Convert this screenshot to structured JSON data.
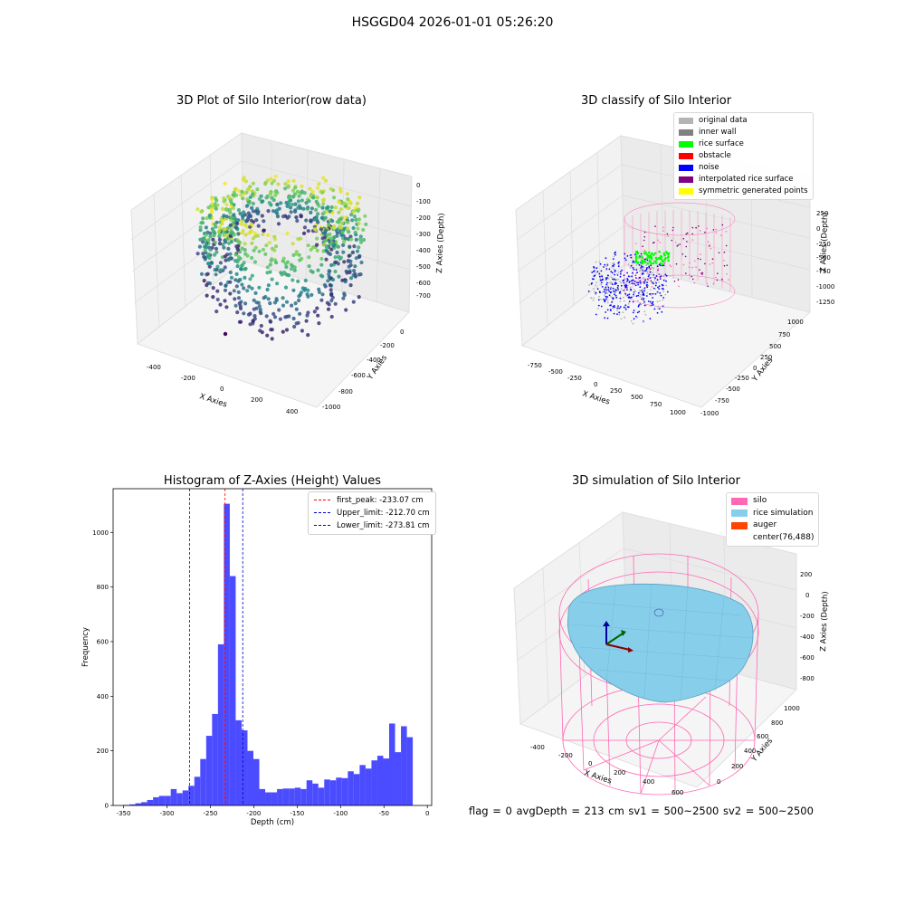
{
  "suptitle": "HSGGD04 2026-01-01 05:26:20",
  "footer": "flag = 0     avgDepth = 213 cm  sv1 = 500~2500  sv2 = 500~2500",
  "colors": {
    "original": "#b4b4b4",
    "inner_wall": "#808080",
    "rice_surface": "#00ff00",
    "obstacle": "#ff0000",
    "noise": "#0000ff",
    "interpolated": "#800080",
    "symmetric": "#ffff00",
    "silo": "#ff69b4",
    "rice_sim": "#87ceeb",
    "auger": "#ff4500",
    "hist_bar": "#4b4bff",
    "peak_line": "#ff0000",
    "limit_line": "#0000cc"
  },
  "chart_data": [
    {
      "type": "scatter",
      "title": "3D Plot of Silo Interior(row data)",
      "xlabel": "X Axies",
      "ylabel": "Y Axies",
      "zlabel": "Z Axies (Depth)",
      "xticks": [
        "-400",
        "-200",
        "0",
        "200",
        "400"
      ],
      "yticks": [
        "0",
        "-200",
        "-400",
        "-600",
        "-800",
        "-1000"
      ],
      "zticks": [
        "0",
        "-100",
        "-200",
        "-300",
        "-400",
        "-500",
        "-600",
        "-700"
      ],
      "colormap": "viridis"
    },
    {
      "type": "scatter",
      "title": "3D classify of Silo Interior",
      "xlabel": "X Axies",
      "ylabel": "Y Axies",
      "zlabel": "Z Axies (Depth)",
      "xticks": [
        "-750",
        "-500",
        "-250",
        "0",
        "250",
        "500",
        "750",
        "1000"
      ],
      "yticks": [
        "1000",
        "750",
        "500",
        "250",
        "0",
        "-250",
        "-500",
        "-750",
        "-1000"
      ],
      "zticks": [
        "250",
        "0",
        "-250",
        "-500",
        "-750",
        "-1000",
        "-1250"
      ],
      "legend": [
        "original data",
        "inner wall",
        "rice surface",
        "obstacle",
        "noise",
        "interpolated rice surface",
        "symmetric generated points"
      ]
    },
    {
      "type": "bar",
      "title": "Histogram of Z-Axies (Height) Values",
      "xlabel": "Depth (cm)",
      "ylabel": "Frequency",
      "xlim": [
        -362,
        5
      ],
      "ylim": [
        0,
        1160
      ],
      "xticks": [
        -350,
        -300,
        -250,
        -200,
        -150,
        -100,
        -50,
        0
      ],
      "yticks": [
        0,
        200,
        400,
        600,
        800,
        1000
      ],
      "bin_start": -350,
      "bin_width": 6.8,
      "values": [
        2,
        4,
        8,
        12,
        20,
        30,
        35,
        35,
        60,
        45,
        55,
        72,
        105,
        170,
        255,
        335,
        590,
        1105,
        840,
        312,
        275,
        200,
        170,
        60,
        48,
        48,
        60,
        62,
        62,
        65,
        60,
        92,
        80,
        65,
        95,
        92,
        102,
        100,
        125,
        115,
        148,
        135,
        165,
        182,
        172,
        300,
        195,
        290,
        250
      ],
      "vlines": [
        {
          "label": "first_peak: -233.07 cm",
          "x": -233.07,
          "color": "#ff0000"
        },
        {
          "label": "Upper_limit: -212.70 cm",
          "x": -212.7,
          "color": "#0000cc"
        },
        {
          "label": "Lower_limit: -273.81 cm",
          "x": -273.81,
          "color": "#0000cc"
        }
      ]
    },
    {
      "type": "surface",
      "title": "3D simulation of Silo Interior",
      "xlabel": "X Axies",
      "ylabel": "Y Axies",
      "zlabel": "Z Axies (Depth)",
      "xticks": [
        "-400",
        "-200",
        "0",
        "200",
        "400",
        "600"
      ],
      "yticks": [
        "0",
        "200",
        "400",
        "600",
        "800",
        "1000"
      ],
      "zticks": [
        "200",
        "0",
        "-200",
        "-400",
        "-600",
        "-800"
      ],
      "legend": [
        "silo",
        "rice simulation",
        "auger",
        "center(76,488)"
      ]
    }
  ]
}
